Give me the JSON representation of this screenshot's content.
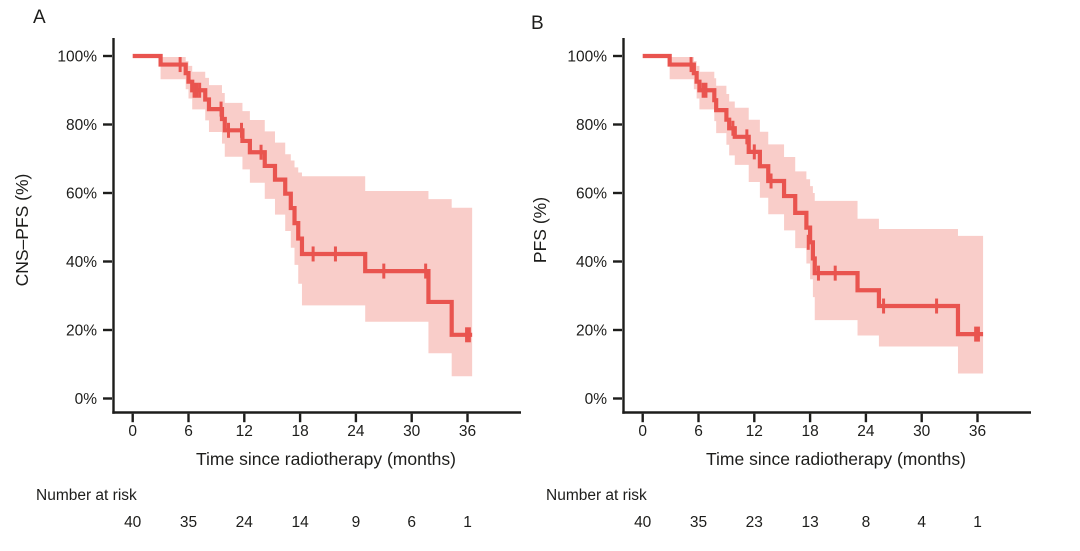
{
  "figure": {
    "background": "#ffffff",
    "colors": {
      "curve": "#e9544f",
      "band": "#f9cdc9",
      "axis": "#1d1d1b",
      "text": "#1d1d1b"
    },
    "panels": [
      {
        "label": "A",
        "y_title": "CNS–PFS (%)",
        "x_title": "Time since radiotherapy (months)",
        "risk_header": "Number at risk"
      },
      {
        "label": "B",
        "y_title": "PFS (%)",
        "x_title": "Time since radiotherapy (months)",
        "risk_header": "Number at risk"
      }
    ]
  },
  "chart_data": [
    {
      "type": "line",
      "subtype": "kaplan-meier-step",
      "title": "A",
      "ylabel": "CNS–PFS (%)",
      "xlabel": "Time since radiotherapy (months)",
      "xlim": [
        0,
        42
      ],
      "ylim": [
        0,
        100
      ],
      "xticks": [
        0,
        6,
        12,
        18,
        24,
        30,
        36
      ],
      "ytick_labels": [
        "0%",
        "20%",
        "40%",
        "60%",
        "80%",
        "100%"
      ],
      "grid": false,
      "legend": "none",
      "curve_end_time": 36.5,
      "steps": [
        [
          0,
          100,
          null,
          null
        ],
        [
          3.0,
          97.5,
          93.2,
          99.7
        ],
        [
          5.7,
          95.0,
          90.3,
          98.5
        ],
        [
          6.0,
          92.5,
          87.6,
          97.1
        ],
        [
          6.4,
          90.0,
          84.4,
          95.4
        ],
        [
          7.8,
          87.3,
          81.2,
          93.6
        ],
        [
          8.2,
          84.5,
          77.8,
          91.5
        ],
        [
          9.6,
          81.6,
          74.4,
          89.2
        ],
        [
          9.9,
          78.3,
          70.6,
          86.3
        ],
        [
          11.8,
          75.2,
          66.9,
          83.9
        ],
        [
          12.6,
          71.9,
          63.0,
          81.3
        ],
        [
          14.2,
          67.9,
          58.3,
          78.0
        ],
        [
          15.3,
          63.9,
          53.7,
          74.7
        ],
        [
          16.4,
          59.8,
          48.9,
          71.3
        ],
        [
          17.0,
          55.6,
          44.0,
          69.5
        ],
        [
          17.4,
          51.2,
          39.0,
          67.5
        ],
        [
          17.8,
          46.7,
          33.5,
          66.0
        ],
        [
          18.2,
          42.2,
          27.2,
          64.9
        ],
        [
          25.0,
          37.2,
          22.4,
          60.6
        ],
        [
          31.8,
          28.2,
          13.2,
          58.2
        ],
        [
          34.3,
          18.6,
          6.5,
          55.7
        ]
      ],
      "censors": [
        [
          5.1,
          97.5
        ],
        [
          6.6,
          90.0
        ],
        [
          6.9,
          90.0
        ],
        [
          7.2,
          90.0
        ],
        [
          9.5,
          84.5
        ],
        [
          10.3,
          78.3
        ],
        [
          11.7,
          78.3
        ],
        [
          13.8,
          71.9
        ],
        [
          19.4,
          42.2
        ],
        [
          21.8,
          42.2
        ],
        [
          27.0,
          37.2
        ],
        [
          31.5,
          37.2
        ],
        [
          35.9,
          18.6
        ],
        [
          36.2,
          18.6
        ]
      ],
      "number_at_risk": {
        "times": [
          0,
          6,
          12,
          18,
          24,
          30,
          36
        ],
        "values": [
          40,
          35,
          24,
          14,
          9,
          6,
          1
        ]
      }
    },
    {
      "type": "line",
      "subtype": "kaplan-meier-step",
      "title": "B",
      "ylabel": "PFS (%)",
      "xlabel": "Time since radiotherapy (months)",
      "xlim": [
        0,
        42
      ],
      "ylim": [
        0,
        100
      ],
      "xticks": [
        0,
        6,
        12,
        18,
        24,
        30,
        36
      ],
      "ytick_labels": [
        "0%",
        "20%",
        "40%",
        "60%",
        "80%",
        "100%"
      ],
      "grid": false,
      "legend": "none",
      "curve_end_time": 36.6,
      "steps": [
        [
          0,
          100,
          null,
          null
        ],
        [
          2.9,
          97.5,
          93.2,
          99.7
        ],
        [
          5.5,
          95.0,
          90.3,
          98.5
        ],
        [
          5.8,
          92.5,
          87.6,
          97.1
        ],
        [
          6.1,
          90.0,
          84.4,
          95.4
        ],
        [
          7.7,
          87.1,
          81.0,
          93.5
        ],
        [
          7.9,
          84.2,
          77.5,
          91.3
        ],
        [
          9.0,
          81.4,
          74.1,
          88.9
        ],
        [
          9.3,
          78.9,
          71.0,
          86.7
        ],
        [
          9.9,
          76.4,
          68.2,
          84.9
        ],
        [
          11.4,
          72.0,
          63.2,
          81.4
        ],
        [
          12.6,
          67.8,
          58.6,
          77.9
        ],
        [
          13.5,
          63.5,
          53.8,
          74.2
        ],
        [
          15.2,
          59.1,
          49.1,
          70.5
        ],
        [
          16.4,
          54.2,
          43.9,
          66.3
        ],
        [
          17.6,
          49.9,
          39.4,
          64.0
        ],
        [
          18.0,
          45.6,
          34.8,
          62.0
        ],
        [
          18.3,
          40.9,
          29.6,
          60.0
        ],
        [
          18.5,
          36.6,
          22.9,
          57.7
        ],
        [
          23.1,
          31.6,
          18.4,
          52.5
        ],
        [
          25.4,
          27.0,
          15.2,
          49.5
        ],
        [
          33.9,
          18.8,
          7.3,
          47.5
        ]
      ],
      "censors": [
        [
          5.2,
          97.5
        ],
        [
          6.5,
          90.0
        ],
        [
          6.8,
          90.0
        ],
        [
          9.7,
          78.9
        ],
        [
          11.2,
          76.4
        ],
        [
          12.0,
          72.0
        ],
        [
          13.8,
          63.5
        ],
        [
          17.8,
          45.6
        ],
        [
          18.9,
          36.6
        ],
        [
          20.7,
          36.6
        ],
        [
          25.9,
          27.0
        ],
        [
          31.6,
          27.0
        ],
        [
          35.8,
          18.8
        ],
        [
          36.1,
          18.8
        ]
      ],
      "number_at_risk": {
        "times": [
          0,
          6,
          12,
          18,
          24,
          30,
          36
        ],
        "values": [
          40,
          35,
          23,
          13,
          8,
          4,
          1
        ]
      }
    }
  ]
}
